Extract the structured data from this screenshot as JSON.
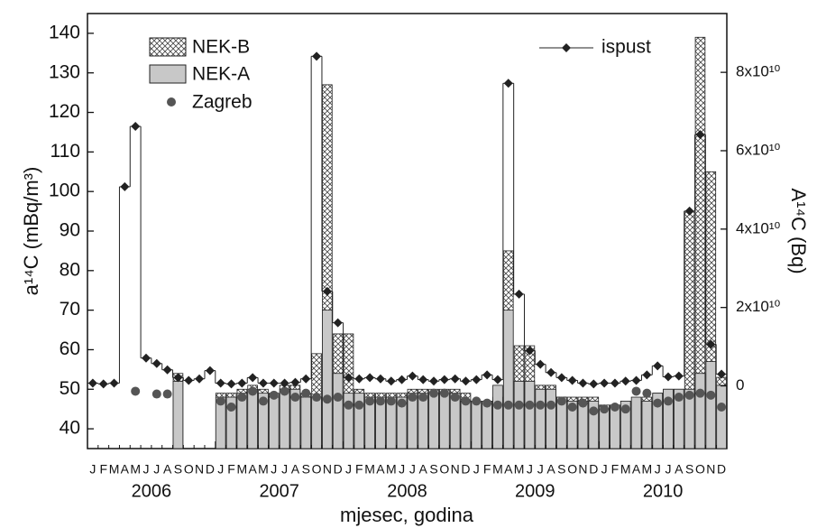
{
  "chart_data": {
    "type": "bar",
    "x_label": "mjesec, godina",
    "y_label": "a¹⁴C (mBq/m³)",
    "y2_label": "A¹⁴C (Bq)",
    "categories": [
      "J",
      "F",
      "M",
      "A",
      "M",
      "J",
      "J",
      "A",
      "S",
      "O",
      "N",
      "D",
      "J",
      "F",
      "M",
      "A",
      "M",
      "J",
      "J",
      "A",
      "S",
      "O",
      "N",
      "D",
      "J",
      "F",
      "M",
      "A",
      "M",
      "J",
      "J",
      "A",
      "S",
      "O",
      "N",
      "D",
      "J",
      "F",
      "M",
      "A",
      "M",
      "J",
      "J",
      "A",
      "S",
      "O",
      "N",
      "D",
      "J",
      "F",
      "M",
      "A",
      "M",
      "J",
      "J",
      "A",
      "S",
      "O",
      "N",
      "D"
    ],
    "years": [
      "2006",
      "2007",
      "2008",
      "2009",
      "2010"
    ],
    "ylim": [
      35,
      145
    ],
    "yticks": [
      40,
      50,
      60,
      70,
      80,
      90,
      100,
      110,
      120,
      130,
      140
    ],
    "y2lim": [
      -16000000000,
      95000000000
    ],
    "y2ticks": [
      0,
      {
        "value": 20000000000,
        "label": "2x10¹⁰"
      },
      {
        "value": 40000000000,
        "label": "4x10¹⁰"
      },
      {
        "value": 60000000000,
        "label": "6x10¹⁰"
      },
      {
        "value": 80000000000,
        "label": "8x10¹⁰"
      }
    ],
    "grid": false,
    "series": [
      {
        "name": "NEK-B",
        "color": "#444444",
        "pattern": "crosshatch",
        "values": [
          null,
          null,
          null,
          null,
          null,
          null,
          null,
          null,
          54,
          null,
          null,
          null,
          49,
          49,
          50,
          51,
          50,
          49,
          51,
          51,
          49,
          59,
          127,
          64,
          64,
          50,
          49,
          49,
          49,
          49,
          50,
          50,
          50,
          50,
          50,
          49,
          47,
          47,
          48,
          85,
          61,
          61,
          51,
          51,
          48,
          48,
          48,
          48,
          46,
          46,
          47,
          47,
          48,
          49,
          50,
          50,
          95,
          139,
          105,
          53
        ]
      },
      {
        "name": "NEK-A",
        "color": "#c8c8c8",
        "values": [
          null,
          null,
          null,
          null,
          null,
          null,
          null,
          null,
          52,
          null,
          null,
          null,
          48,
          48,
          49,
          50,
          49,
          48,
          50,
          50,
          48,
          48,
          70,
          54,
          49,
          49,
          48,
          48,
          48,
          48,
          49,
          49,
          49,
          49,
          49,
          47,
          47,
          47,
          51,
          70,
          52,
          52,
          50,
          50,
          48,
          47,
          47,
          47,
          45,
          46,
          47,
          48,
          47,
          49,
          50,
          50,
          50,
          54,
          57,
          51
        ]
      },
      {
        "name": "Zagreb",
        "color": "#555555",
        "marker": "circle",
        "values": [
          null,
          null,
          null,
          null,
          49.5,
          null,
          48.8,
          48.8,
          null,
          null,
          null,
          null,
          47,
          45.5,
          48,
          49.5,
          47,
          48.5,
          49.5,
          48,
          49,
          48,
          47.5,
          48,
          46,
          46,
          47,
          47,
          47,
          46.5,
          48,
          48,
          49,
          49,
          48,
          47,
          47,
          46.5,
          46,
          46,
          46,
          46,
          46,
          46,
          47,
          45.5,
          46.5,
          44.5,
          45,
          45.5,
          45,
          49.5,
          49,
          46.5,
          47,
          48,
          48.5,
          49,
          48.5,
          45.5
        ]
      },
      {
        "name": "ispust",
        "color": "#222222",
        "axis": "y2",
        "marker": "diamond",
        "values": [
          700000000,
          500000000,
          700000000,
          50800000000,
          66200000000,
          7100000000,
          5700000000,
          4100000000,
          2100000000,
          1400000000,
          1800000000,
          3900000000,
          700000000,
          500000000,
          700000000,
          2100000000,
          700000000,
          700000000,
          700000000,
          900000000,
          1800000000,
          84100000000,
          24100000000,
          16100000000,
          2100000000,
          1800000000,
          2100000000,
          1800000000,
          1200000000,
          1600000000,
          2500000000,
          1600000000,
          1200000000,
          1600000000,
          1800000000,
          1200000000,
          1600000000,
          2800000000,
          1600000000,
          77200000000,
          23400000000,
          9000000000,
          5500000000,
          3400000000,
          2100000000,
          1400000000,
          700000000,
          500000000,
          700000000,
          700000000,
          1200000000,
          1400000000,
          2800000000,
          5100000000,
          2300000000,
          2500000000,
          44600000000,
          64100000000,
          10600000000,
          3000000000
        ]
      }
    ]
  }
}
